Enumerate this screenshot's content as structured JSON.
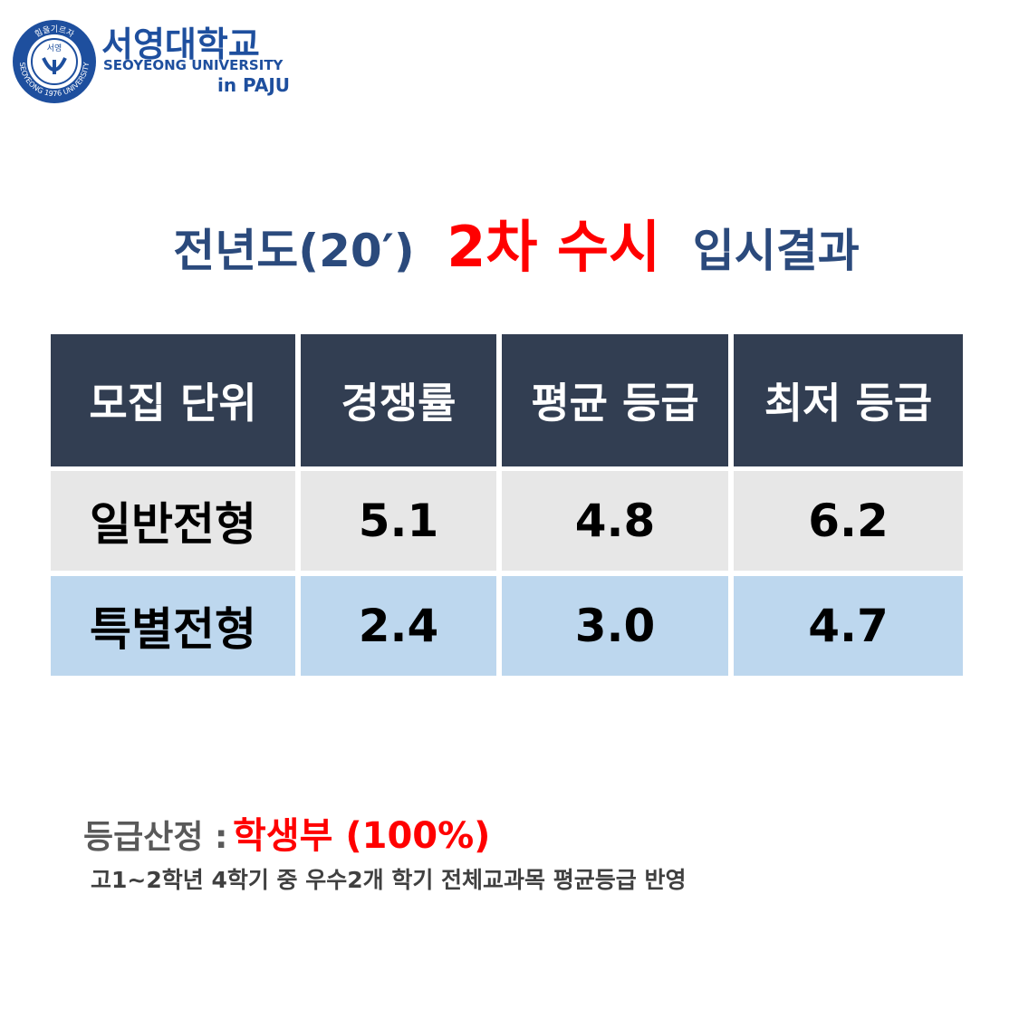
{
  "logo": {
    "seal_top": "힘을기르자",
    "seal_center": "서영",
    "seal_bottom": "SEOYEONG 1976 UNIVERSITY",
    "name_ko": "서영대학교",
    "name_en": "SEOYEONG UNIVERSITY",
    "campus": "in PAJU"
  },
  "title": {
    "prefix": "전년도(20′)",
    "highlight": "2차 수시",
    "suffix": "입시결과"
  },
  "table": {
    "header": [
      "모집 단위",
      "경쟁률",
      "평균 등급",
      "최저 등급"
    ],
    "rows": [
      [
        "일반전형",
        "5.1",
        "4.8",
        "6.2"
      ],
      [
        "특별전형",
        "2.4",
        "3.0",
        "4.7"
      ]
    ]
  },
  "note": {
    "label": "등급산정 :",
    "highlight": "학생부 (100%)",
    "detail": "고1~2학년 4학기 중 우수2개 학기 전체교과목 평균등급 반영"
  }
}
